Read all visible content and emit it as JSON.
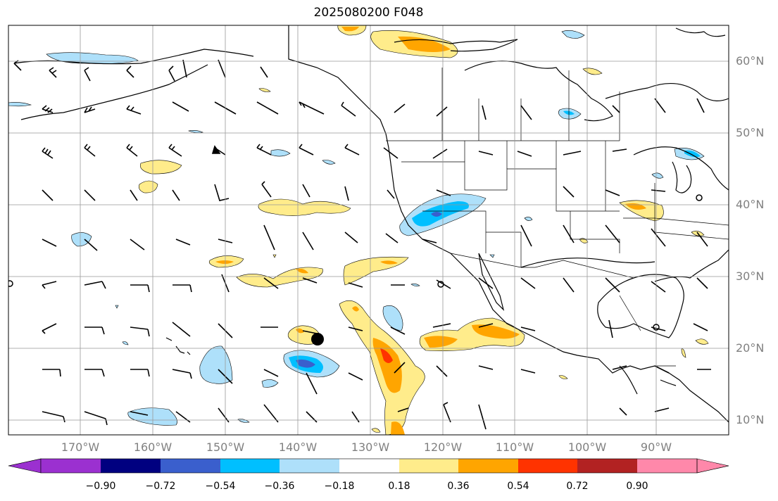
{
  "title": "2025080200 F048",
  "map": {
    "lon_ticks": [
      "170°W",
      "160°W",
      "150°W",
      "140°W",
      "130°W",
      "120°W",
      "110°W",
      "100°W",
      "90°W"
    ],
    "lat_ticks": [
      "60°N",
      "50°N",
      "40°N",
      "30°N",
      "20°N",
      "10°N"
    ],
    "grid": true,
    "storm_marker": "filled-black-dot"
  },
  "colorbar": {
    "tick_labels": [
      "−0.90",
      "−0.72",
      "−0.54",
      "−0.36",
      "−0.18",
      "0.18",
      "0.36",
      "0.54",
      "0.72",
      "0.90"
    ],
    "colors": [
      "#9b30d0",
      "#000080",
      "#3a5fcd",
      "#00bfff",
      "#aee0fa",
      "#ffffff",
      "#ffec8b",
      "#ffa500",
      "#ff3300",
      "#b22222",
      "#ff88aa"
    ],
    "extend": "both"
  }
}
